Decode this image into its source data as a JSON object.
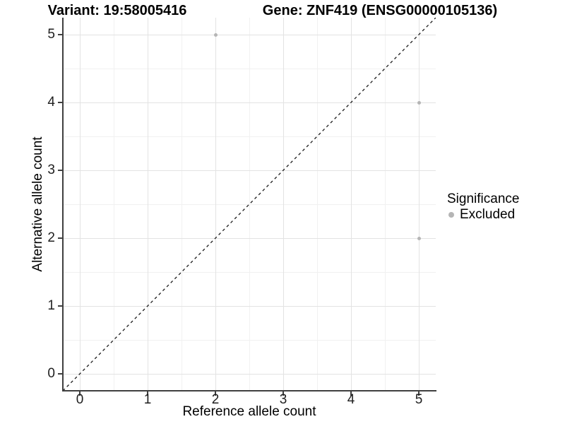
{
  "chart_data": {
    "type": "scatter",
    "title_left": "Variant: 19:58005416",
    "title_right": "Gene: ZNF419 (ENSG00000105136)",
    "xlabel": "Reference allele count",
    "ylabel": "Alternative allele count",
    "xlim": [
      -0.25,
      5.25
    ],
    "ylim": [
      -0.25,
      5.25
    ],
    "x_ticks": [
      0,
      1,
      2,
      3,
      4,
      5
    ],
    "y_ticks": [
      0,
      1,
      2,
      3,
      4,
      5
    ],
    "grid": "major and minor on",
    "series": [
      {
        "name": "Excluded",
        "color": "#b5b5b5",
        "points": [
          {
            "x": 2,
            "y": 5
          },
          {
            "x": 5,
            "y": 4
          },
          {
            "x": 5,
            "y": 2
          }
        ]
      }
    ],
    "reference_line": {
      "equation": "y = x",
      "style": "dashed",
      "color": "#1a1a1a"
    },
    "legend": {
      "title": "Significance",
      "position": "right",
      "items": [
        {
          "label": "Excluded",
          "color": "#b5b5b5"
        }
      ]
    }
  }
}
